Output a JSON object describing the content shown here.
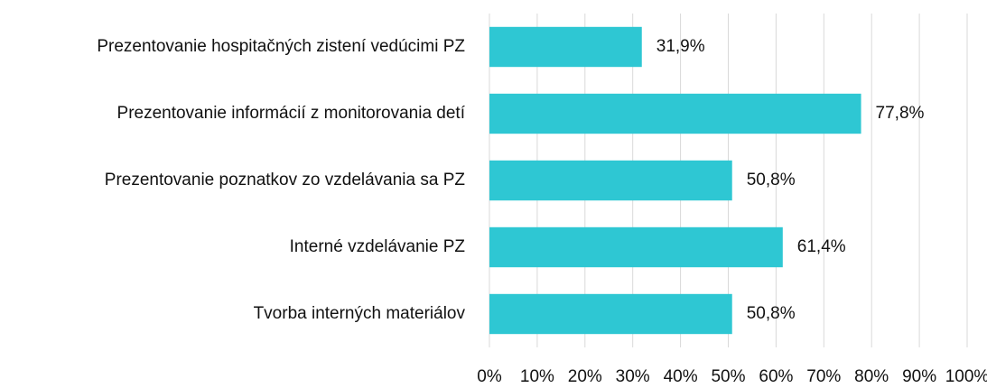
{
  "chart_data": {
    "type": "hbar",
    "categories": [
      "Prezentovanie hospitačných zistení vedúcimi PZ",
      "Prezentovanie informácií z monitorovania detí",
      "Prezentovanie poznatkov zo vzdelávania sa PZ",
      "Interné vzdelávanie PZ",
      "Tvorba interných materiálov"
    ],
    "values": [
      31.9,
      77.8,
      50.8,
      61.4,
      50.8
    ],
    "value_labels": [
      "31,9%",
      "77,8%",
      "50,8%",
      "61,4%",
      "50,8%"
    ],
    "color": "#2ec7d3",
    "xlim": [
      0,
      100
    ],
    "xticks": [
      {
        "value": 0,
        "label": "0%"
      },
      {
        "value": 10,
        "label": "10%"
      },
      {
        "value": 20,
        "label": "20%"
      },
      {
        "value": 30,
        "label": "30%"
      },
      {
        "value": 40,
        "label": "40%"
      },
      {
        "value": 50,
        "label": "50%"
      },
      {
        "value": 60,
        "label": "60%"
      },
      {
        "value": 70,
        "label": "70%"
      },
      {
        "value": 80,
        "label": "80%"
      },
      {
        "value": 90,
        "label": "90%"
      },
      {
        "value": 100,
        "label": "100%"
      }
    ],
    "grid": true
  }
}
